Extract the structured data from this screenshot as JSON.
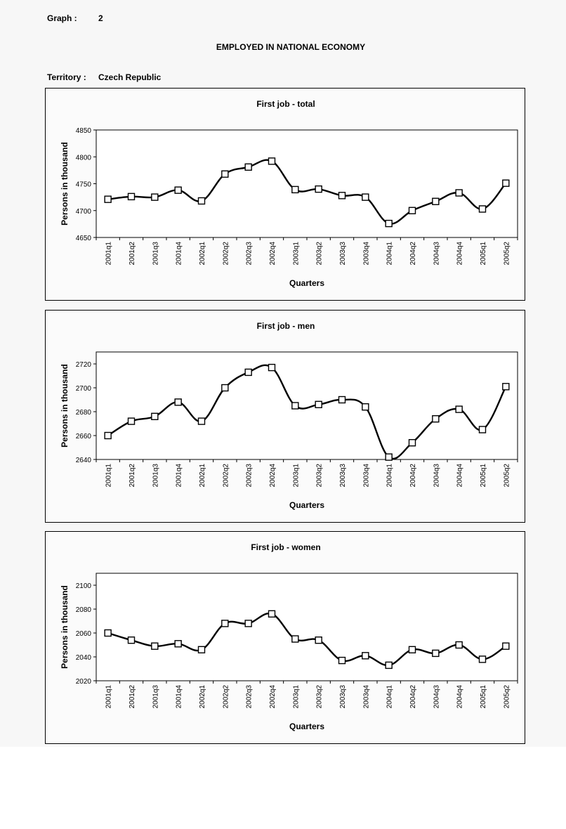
{
  "header": {
    "graph_label": "Graph :",
    "graph_number": "2",
    "main_title": "EMPLOYED IN NATIONAL ECONOMY",
    "territory_label": "Territory :",
    "territory_value": "Czech Republic"
  },
  "chart_data": [
    {
      "type": "line",
      "title": "First job - total",
      "xlabel": "Quarters",
      "ylabel": "Persons in thousand",
      "ylim": [
        4650,
        4850
      ],
      "yticks": [
        4650,
        4700,
        4750,
        4800,
        4850
      ],
      "grid": false,
      "categories": [
        "2001q1",
        "2001q2",
        "2001q3",
        "2001q4",
        "2002q1",
        "2002q2",
        "2002q3",
        "2002q4",
        "2003q1",
        "2003q2",
        "2003q3",
        "2003q4",
        "2004q1",
        "2004q2",
        "2004q3",
        "2004q4",
        "2005q1",
        "2005q2"
      ],
      "values": [
        4721,
        4726,
        4725,
        4738,
        4718,
        4768,
        4781,
        4792,
        4739,
        4740,
        4728,
        4725,
        4676,
        4700,
        4717,
        4733,
        4703,
        4751
      ]
    },
    {
      "type": "line",
      "title": "First job - men",
      "xlabel": "Quarters",
      "ylabel": "Persons in thousand",
      "ylim": [
        2640,
        2730
      ],
      "yticks": [
        2640,
        2660,
        2680,
        2700,
        2720
      ],
      "grid": false,
      "categories": [
        "2001q1",
        "2001q2",
        "2001q3",
        "2001q4",
        "2002q1",
        "2002q2",
        "2002q3",
        "2002q4",
        "2003q1",
        "2003q2",
        "2003q3",
        "2003q4",
        "2004q1",
        "2004q2",
        "2004q3",
        "2004q4",
        "2005q1",
        "2005q2"
      ],
      "values": [
        2660,
        2672,
        2676,
        2688,
        2672,
        2700,
        2713,
        2717,
        2685,
        2686,
        2690,
        2684,
        2642,
        2654,
        2674,
        2682,
        2665,
        2701
      ]
    },
    {
      "type": "line",
      "title": "First job - women",
      "xlabel": "Quarters",
      "ylabel": "Persons in thousand",
      "ylim": [
        2020,
        2110
      ],
      "yticks": [
        2020,
        2040,
        2060,
        2080,
        2100
      ],
      "grid": false,
      "categories": [
        "2001q1",
        "2001q2",
        "2001q3",
        "2001q4",
        "2002q1",
        "2002q2",
        "2002q3",
        "2002q4",
        "2003q1",
        "2003q2",
        "2003q3",
        "2003q4",
        "2004q1",
        "2004q2",
        "2004q3",
        "2004q4",
        "2005q1",
        "2005q2"
      ],
      "values": [
        2060,
        2054,
        2049,
        2051,
        2046,
        2068,
        2068,
        2076,
        2055,
        2054,
        2037,
        2041,
        2033,
        2046,
        2043,
        2050,
        2038,
        2049
      ]
    }
  ]
}
